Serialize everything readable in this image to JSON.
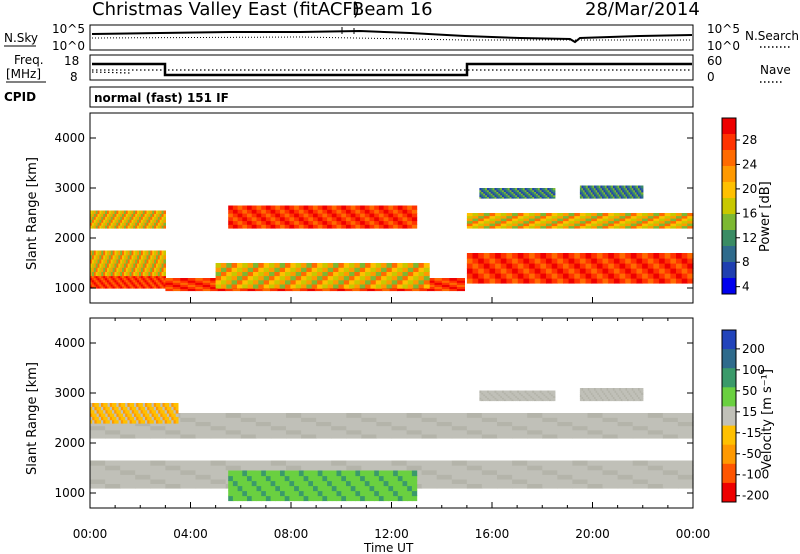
{
  "header": {
    "station": "Christmas Valley East (fitACF)",
    "beam": "Beam 16",
    "date": "28/Mar/2014"
  },
  "panels": {
    "nsky_label": "N.Sky",
    "nsky_ticks": [
      "10^5",
      "10^0"
    ],
    "nsearch_label": "N.Search",
    "freq_label_1": "Freq.",
    "freq_label_2": "[MHz]",
    "freq_ticks": [
      "18",
      "8"
    ],
    "nave_label": "Nave",
    "nave_ticks": [
      "60",
      "0"
    ],
    "cpid_label": "CPID",
    "cpid_value": "normal (fast) 151 IF"
  },
  "x_axis": {
    "label": "Time UT",
    "ticks": [
      "00:00",
      "04:00",
      "08:00",
      "12:00",
      "16:00",
      "20:00",
      "00:00"
    ]
  },
  "power_colorbar": {
    "label": "Power [dB]",
    "ticks": [
      "28",
      "24",
      "20",
      "16",
      "12",
      "8",
      "4"
    ],
    "colors": [
      "#ee0000",
      "#ff3300",
      "#ff6a00",
      "#ff9900",
      "#ffc000",
      "#c8c800",
      "#7cb832",
      "#3a8c64",
      "#2f6b8c",
      "#1f3fb0",
      "#0000ee"
    ]
  },
  "velocity_colorbar": {
    "label": "Velocity [m s⁻¹]",
    "ticks": [
      "200",
      "100",
      "50",
      "15",
      "-15",
      "-50",
      "-100",
      "-200"
    ],
    "colors": [
      "#2244bb",
      "#2f6b8c",
      "#3a9a6a",
      "#6ad040",
      "#c0c0b8",
      "#ffc000",
      "#ff9900",
      "#ff5500",
      "#ee0000"
    ]
  },
  "chart_data": [
    {
      "type": "heatmap",
      "name": "power",
      "ylabel": "Slant Range [km]",
      "xlabel": "Time UT",
      "xlim": [
        0,
        24
      ],
      "ylim": [
        700,
        4500
      ],
      "yticks": [
        1000,
        2000,
        3000,
        4000
      ],
      "bands": [
        {
          "t0": 0.0,
          "t1": 3.0,
          "r0": 1000,
          "r1": 1250,
          "level": "high"
        },
        {
          "t0": 0.0,
          "t1": 3.0,
          "r0": 1250,
          "r1": 1750,
          "level": "mid"
        },
        {
          "t0": 0.0,
          "t1": 3.0,
          "r0": 2200,
          "r1": 2550,
          "level": "mid"
        },
        {
          "t0": 3.0,
          "t1": 14.9,
          "r0": 950,
          "r1": 1200,
          "level": "high"
        },
        {
          "t0": 5.0,
          "t1": 13.5,
          "r0": 1000,
          "r1": 1500,
          "level": "mid"
        },
        {
          "t0": 5.5,
          "t1": 13.0,
          "r0": 2200,
          "r1": 2650,
          "level": "high"
        },
        {
          "t0": 15.0,
          "t1": 24.0,
          "r0": 1100,
          "r1": 1700,
          "level": "high"
        },
        {
          "t0": 15.0,
          "t1": 24.0,
          "r0": 2200,
          "r1": 2500,
          "level": "mid"
        },
        {
          "t0": 15.5,
          "t1": 18.5,
          "r0": 2800,
          "r1": 3000,
          "level": "low"
        },
        {
          "t0": 19.5,
          "t1": 22.0,
          "r0": 2800,
          "r1": 3050,
          "level": "low"
        }
      ]
    },
    {
      "type": "heatmap",
      "name": "velocity",
      "ylabel": "Slant Range [km]",
      "xlabel": "Time UT",
      "xlim": [
        0,
        24
      ],
      "ylim": [
        700,
        4500
      ],
      "yticks": [
        1000,
        2000,
        3000,
        4000
      ],
      "bands": [
        {
          "t0": 0.0,
          "t1": 24.0,
          "r0": 1100,
          "r1": 1650,
          "level": "ground"
        },
        {
          "t0": 0.0,
          "t1": 24.0,
          "r0": 2100,
          "r1": 2600,
          "level": "ground"
        },
        {
          "t0": 5.5,
          "t1": 13.0,
          "r0": 850,
          "r1": 1450,
          "level": "pos50"
        },
        {
          "t0": 0.0,
          "t1": 3.5,
          "r0": 2400,
          "r1": 2800,
          "level": "neg50"
        },
        {
          "t0": 15.5,
          "t1": 18.5,
          "r0": 2850,
          "r1": 3050,
          "level": "ground"
        },
        {
          "t0": 19.5,
          "t1": 22.0,
          "r0": 2850,
          "r1": 3100,
          "level": "ground"
        }
      ]
    }
  ]
}
